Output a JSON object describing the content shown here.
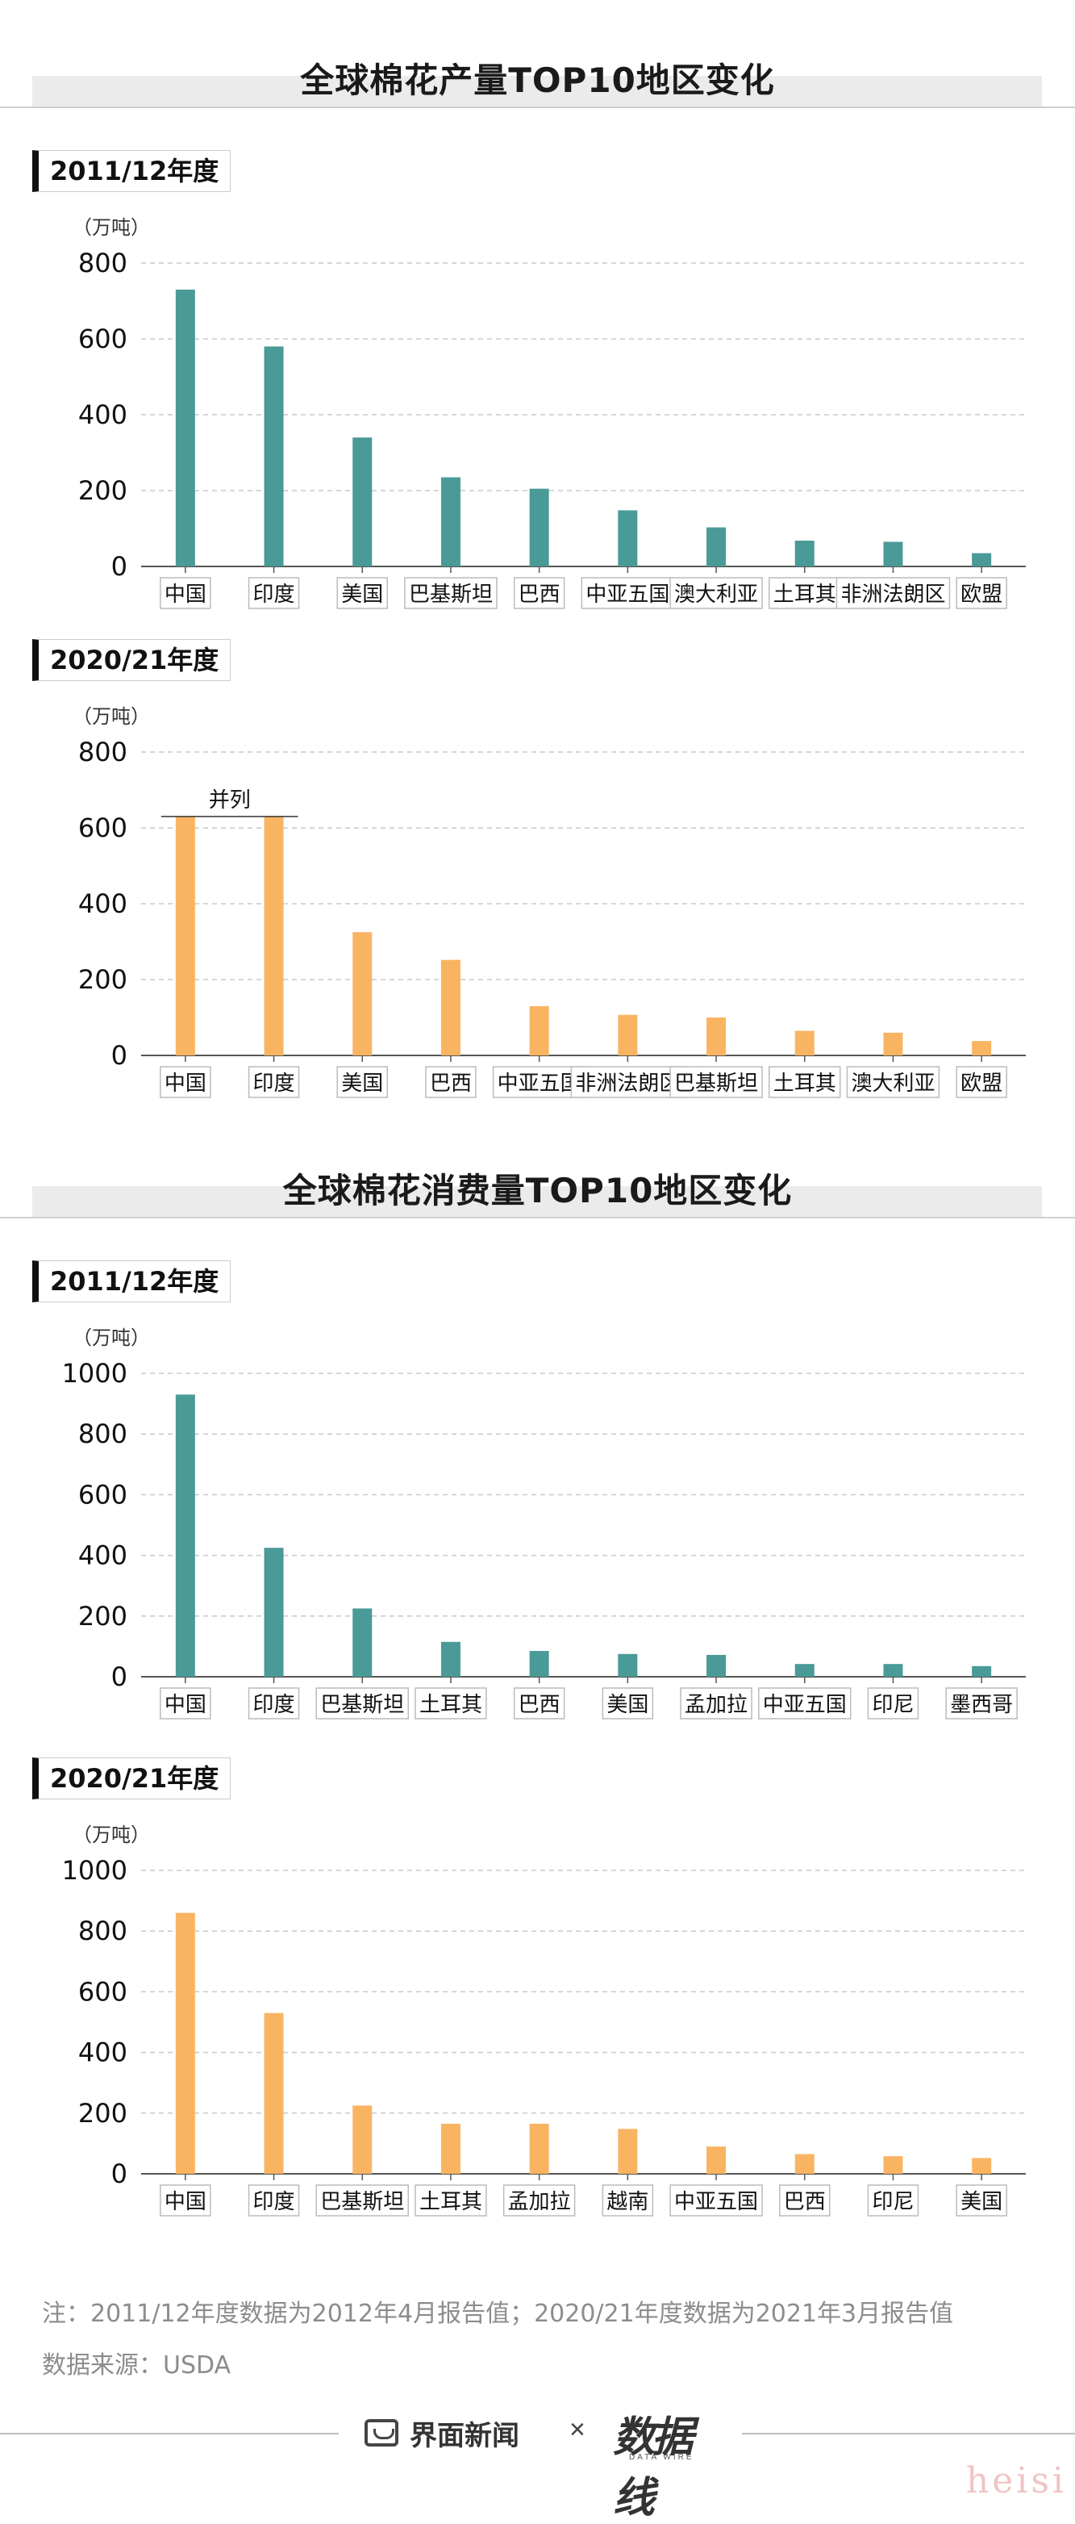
{
  "sections": [
    {
      "title": "全球棉花产量TOP10地区变化"
    },
    {
      "title": "全球棉花消费量TOP10地区变化"
    }
  ],
  "unit_label": "（万吨）",
  "tie_label": "并列",
  "colors": {
    "teal": "#4a9a97",
    "orange": "#f9b462"
  },
  "chart_data": [
    {
      "type": "bar",
      "title": "2011/12年度",
      "ylabel": "（万吨）",
      "ylim": [
        0,
        800
      ],
      "yticks": [
        0,
        200,
        400,
        600,
        800
      ],
      "categories": [
        "中国",
        "印度",
        "美国",
        "巴基斯坦",
        "巴西",
        "中亚五国",
        "澳大利亚",
        "土耳其",
        "非洲法朗区",
        "欧盟"
      ],
      "values": [
        730,
        580,
        340,
        235,
        205,
        148,
        103,
        68,
        65,
        35
      ],
      "color": "#4a9a97"
    },
    {
      "type": "bar",
      "title": "2020/21年度",
      "ylabel": "（万吨）",
      "ylim": [
        0,
        800
      ],
      "yticks": [
        0,
        200,
        400,
        600,
        800
      ],
      "categories": [
        "中国",
        "印度",
        "美国",
        "巴西",
        "中亚五国",
        "非洲法朗区",
        "巴基斯坦",
        "土耳其",
        "澳大利亚",
        "欧盟"
      ],
      "values": [
        630,
        630,
        325,
        252,
        130,
        107,
        100,
        65,
        60,
        38
      ],
      "color": "#f9b462",
      "annotation": "并列"
    },
    {
      "type": "bar",
      "title": "2011/12年度",
      "ylabel": "（万吨）",
      "ylim": [
        0,
        1000
      ],
      "yticks": [
        0,
        200,
        400,
        600,
        800,
        1000
      ],
      "categories": [
        "中国",
        "印度",
        "巴基斯坦",
        "土耳其",
        "巴西",
        "美国",
        "孟加拉",
        "中亚五国",
        "印尼",
        "墨西哥"
      ],
      "values": [
        930,
        425,
        225,
        115,
        85,
        75,
        72,
        42,
        42,
        35
      ],
      "color": "#4a9a97"
    },
    {
      "type": "bar",
      "title": "2020/21年度",
      "ylabel": "（万吨）",
      "ylim": [
        0,
        1000
      ],
      "yticks": [
        0,
        200,
        400,
        600,
        800,
        1000
      ],
      "categories": [
        "中国",
        "印度",
        "巴基斯坦",
        "土耳其",
        "孟加拉",
        "越南",
        "中亚五国",
        "巴西",
        "印尼",
        "美国"
      ],
      "values": [
        860,
        530,
        225,
        165,
        165,
        148,
        90,
        65,
        58,
        52
      ],
      "color": "#f9b462"
    }
  ],
  "footnotes": {
    "note": "注：2011/12年度数据为2012年4月报告值；2020/21年度数据为2021年3月报告值",
    "source": "数据来源：USDA"
  },
  "footer": {
    "brand": "界面新闻",
    "times": "×",
    "logo_text": "数据线",
    "logo_sub": "DATA WIRE"
  },
  "watermark": "heisi"
}
